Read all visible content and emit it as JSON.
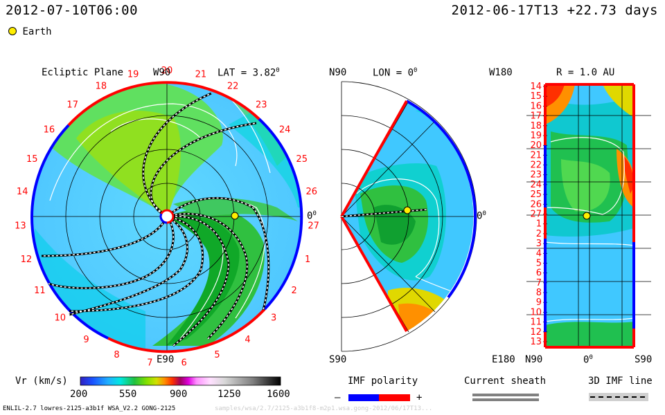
{
  "header": {
    "datetime": "2012-07-10T06:00",
    "ref_time": "2012-06-17T13 +22.73 days"
  },
  "legend": {
    "earth_label": "Earth",
    "earth_color": "#ffee00"
  },
  "panels": {
    "ecliptic": {
      "title": "Ecliptic Plane",
      "top_label": "W90",
      "bottom_label": "E90",
      "right_label": "0",
      "right_sup": "0",
      "lat_label": "LAT = 3.82",
      "lat_sup": "0",
      "carrington_ticks": [
        "20",
        "21",
        "22",
        "23",
        "24",
        "25",
        "26",
        "27",
        "1",
        "2",
        "3",
        "4",
        "5",
        "6",
        "7",
        "8",
        "9",
        "10",
        "11",
        "12",
        "13",
        "14",
        "15",
        "16",
        "17",
        "18",
        "19"
      ]
    },
    "meridional": {
      "top_label": "N90",
      "bottom_label": "S90",
      "lon_label": "LON = 0",
      "lon_sup": "0",
      "right_label": "0",
      "right_sup": "0"
    },
    "synoptic": {
      "top_label": "W180",
      "bottom_label": "E180",
      "r_label": "R = 1.0 AU",
      "x_left": "N90",
      "x_mid": "0",
      "x_mid_sup": "0",
      "x_right": "S90",
      "y_ticks": [
        "14",
        "15",
        "16",
        "17",
        "18",
        "19",
        "20",
        "21",
        "22",
        "23",
        "24",
        "25",
        "26",
        "27",
        "1",
        "2",
        "3",
        "4",
        "5",
        "6",
        "7",
        "8",
        "9",
        "10",
        "11",
        "12",
        "13"
      ]
    }
  },
  "colorbar": {
    "title": "Vr (km/s)",
    "ticks": [
      "200",
      "550",
      "900",
      "1250",
      "1600"
    ],
    "min": 200,
    "max": 1600
  },
  "imf": {
    "title": "IMF polarity",
    "minus": "–",
    "plus": "+",
    "neg_color": "#0000ff",
    "pos_color": "#ff0000"
  },
  "current_sheath": {
    "title": "Current sheath"
  },
  "imf_line": {
    "title": "3D IMF line"
  },
  "footer": {
    "model": "ENLIL-2.7 lowres-2125-a3b1f WSA_V2.2 GONG-2125",
    "faint": "samples/wsa/2.7/2125-a3b1f8-m2p1.wsa.gong-2012/06/17T13..."
  },
  "chart_data": [
    {
      "type": "heatmap",
      "title": "Ecliptic Plane",
      "quantity": "Vr (km/s)",
      "lat_deg": 3.82,
      "value_range": [
        200,
        1600
      ],
      "earth_longitude_deg": 0,
      "earth_r_au": 1.0
    },
    {
      "type": "heatmap",
      "title": "",
      "quantity": "Vr (km/s)",
      "lon_deg": 0,
      "lat_range_deg": [
        -60,
        60
      ],
      "value_range": [
        200,
        1600
      ]
    },
    {
      "type": "heatmap",
      "title": "R = 1.0 AU",
      "quantity": "Vr (km/s)",
      "x_range": [
        "N90",
        "S90"
      ],
      "y_range": [
        "W180",
        "E180"
      ],
      "value_range": [
        200,
        1600
      ]
    }
  ]
}
